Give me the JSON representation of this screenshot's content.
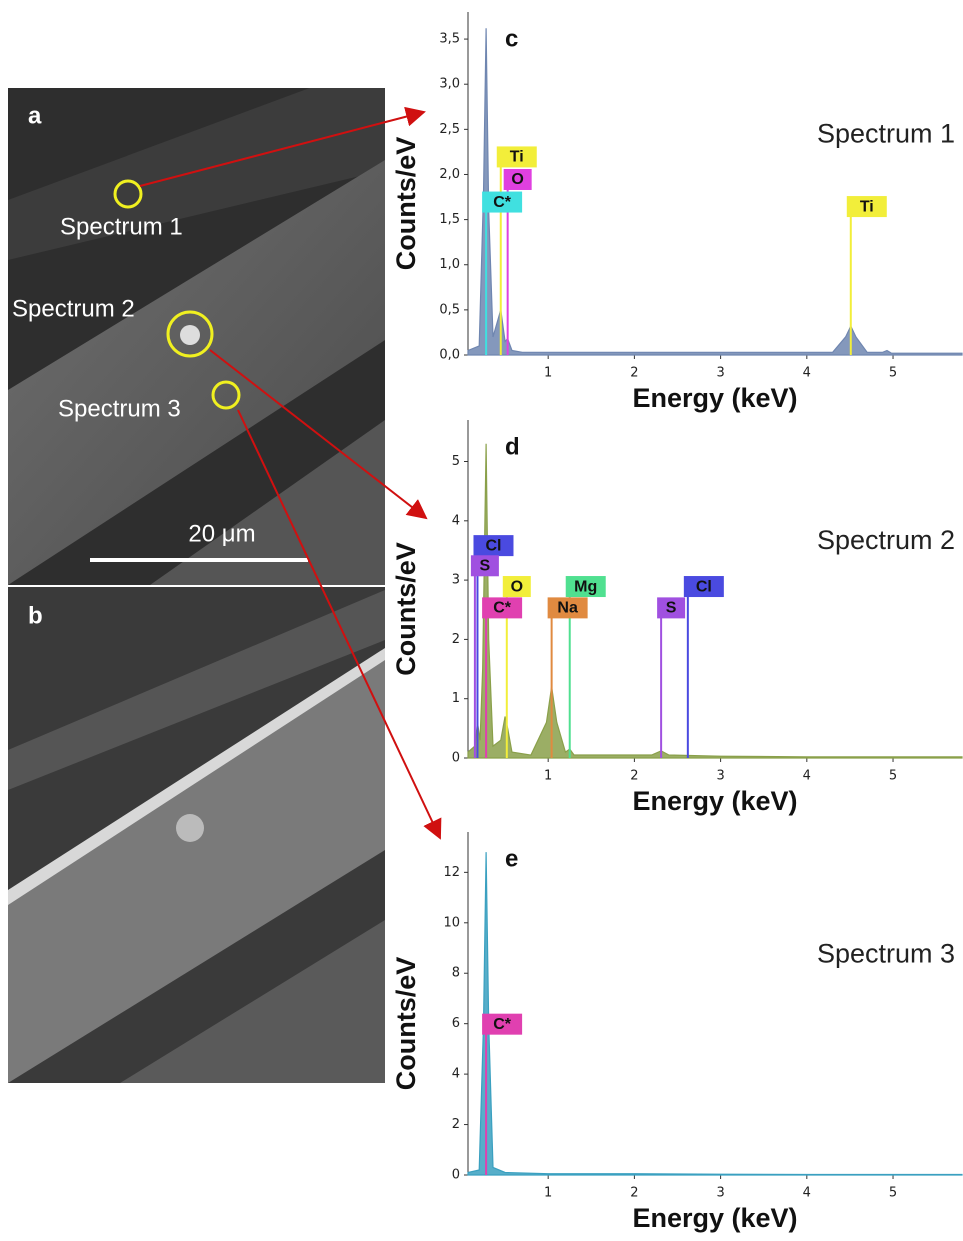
{
  "sem": {
    "panel_a": "a",
    "panel_b": "b",
    "spot_1": "Spectrum 1",
    "spot_2": "Spectrum  2",
    "spot_3": "Spectrum 3",
    "scale_bar": "20 μm"
  },
  "chart_data": [
    {
      "type": "area",
      "panel": "c",
      "annotation": "Spectrum 1",
      "x_label": "Energy (keV)",
      "y_label": "Counts/eV",
      "xlim": [
        0.07,
        5.8
      ],
      "ylim": [
        0,
        3.8
      ],
      "xticks": [
        1,
        2,
        3,
        4,
        5
      ],
      "yticks": [
        {
          "value": 0,
          "label": "0,0"
        },
        {
          "value": 0.5,
          "label": "0,5"
        },
        {
          "value": 1,
          "label": "1,0"
        },
        {
          "value": 1.5,
          "label": "1,5"
        },
        {
          "value": 2,
          "label": "2,0"
        },
        {
          "value": 2.5,
          "label": "2,5"
        },
        {
          "value": 3,
          "label": "3,0"
        },
        {
          "value": 3.5,
          "label": "3,5"
        }
      ],
      "x": [
        0.07,
        0.2,
        0.25,
        0.28,
        0.31,
        0.36,
        0.45,
        0.5,
        0.53,
        0.58,
        0.7,
        1.5,
        2.5,
        3.5,
        4.3,
        4.45,
        4.51,
        4.57,
        4.7,
        4.88,
        4.93,
        4.98,
        5.8
      ],
      "series": [
        {
          "color": "#6f86b0",
          "values": [
            0.05,
            0.1,
            1.8,
            3.62,
            1.6,
            0.2,
            0.5,
            0.15,
            0.18,
            0.05,
            0.03,
            0.03,
            0.03,
            0.03,
            0.03,
            0.2,
            0.32,
            0.2,
            0.03,
            0.03,
            0.05,
            0.02,
            0.02
          ]
        }
      ],
      "markers": [
        {
          "label": "Ti",
          "x": 0.45,
          "y": 2.2,
          "color": "#f2ee3a"
        },
        {
          "label": "O",
          "x": 0.53,
          "y": 1.95,
          "color": "#e040e0"
        },
        {
          "label": "C*",
          "x": 0.28,
          "y": 1.7,
          "color": "#40e0e0"
        },
        {
          "label": "Ti",
          "x": 4.51,
          "y": 1.65,
          "color": "#f2ee3a"
        }
      ]
    },
    {
      "type": "area",
      "panel": "d",
      "annotation": "Spectrum 2",
      "x_label": "Energy (keV)",
      "y_label": "Counts/eV",
      "xlim": [
        0.07,
        5.8
      ],
      "ylim": [
        0,
        5.7
      ],
      "xticks": [
        1,
        2,
        3,
        4,
        5
      ],
      "yticks": [
        0,
        1,
        2,
        3,
        4,
        5
      ],
      "x": [
        0.07,
        0.15,
        0.18,
        0.21,
        0.24,
        0.28,
        0.31,
        0.36,
        0.45,
        0.5,
        0.53,
        0.58,
        0.8,
        0.98,
        1.04,
        1.1,
        1.2,
        1.25,
        1.3,
        1.6,
        2.2,
        2.31,
        2.4,
        3,
        4,
        5,
        5.8
      ],
      "series": [
        {
          "color": "#8aa04a",
          "values": [
            0.1,
            0.2,
            0.6,
            0.3,
            1.5,
            5.3,
            2,
            0.2,
            0.3,
            0.7,
            0.5,
            0.1,
            0.05,
            0.6,
            1.2,
            0.6,
            0.1,
            0.15,
            0.05,
            0.05,
            0.05,
            0.12,
            0.05,
            0.03,
            0.02,
            0.02,
            0.02
          ]
        }
      ],
      "markers": [
        {
          "label": "Cl",
          "x": 0.18,
          "y": 3.59,
          "color": "#4a4ae0"
        },
        {
          "label": "S",
          "x": 0.15,
          "y": 3.25,
          "color": "#a050e0"
        },
        {
          "label": "O",
          "x": 0.52,
          "y": 2.9,
          "color": "#f2ee3a"
        },
        {
          "label": "Mg",
          "x": 1.25,
          "y": 2.9,
          "color": "#50e090"
        },
        {
          "label": "C*",
          "x": 0.28,
          "y": 2.54,
          "color": "#e040b0"
        },
        {
          "label": "Na",
          "x": 1.04,
          "y": 2.54,
          "color": "#e08a40"
        },
        {
          "label": "S",
          "x": 2.31,
          "y": 2.54,
          "color": "#a050e0"
        },
        {
          "label": "Cl",
          "x": 2.62,
          "y": 2.9,
          "color": "#4a4ae0"
        }
      ]
    },
    {
      "type": "area",
      "panel": "e",
      "annotation": "Spectrum 3",
      "x_label": "Energy (keV)",
      "y_label": "Counts/eV",
      "xlim": [
        0.07,
        5.8
      ],
      "ylim": [
        0,
        13.6
      ],
      "xticks": [
        1,
        2,
        3,
        4,
        5
      ],
      "yticks": [
        0,
        2,
        4,
        6,
        8,
        10,
        12
      ],
      "x": [
        0.07,
        0.2,
        0.25,
        0.28,
        0.31,
        0.36,
        0.5,
        1,
        2,
        3,
        4,
        5,
        5.8
      ],
      "series": [
        {
          "color": "#3aa0c0",
          "values": [
            0.1,
            0.2,
            6,
            12.8,
            6,
            0.3,
            0.1,
            0.05,
            0.05,
            0.03,
            0.02,
            0.02,
            0.02
          ]
        }
      ],
      "markers": [
        {
          "label": "C*",
          "x": 0.28,
          "y": 6,
          "color": "#e040b0"
        }
      ]
    }
  ]
}
